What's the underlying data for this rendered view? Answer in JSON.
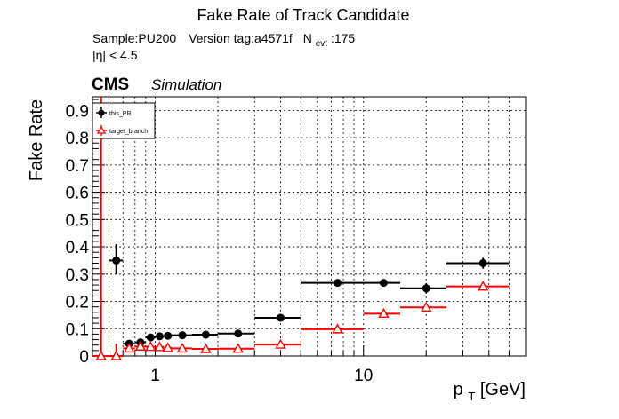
{
  "chart_data": {
    "type": "scatter",
    "title": "Fake Rate of Track Candidate",
    "subtitle": {
      "sample": "Sample:PU200",
      "version": "Version tag:a4571f",
      "nevt_base": "N",
      "nevt_sub": "evt",
      "nevt_value": ":175",
      "eta_cut": "|η| < 4.5"
    },
    "cms_label": "CMS",
    "simulation_label": "Simulation",
    "ylabel": "Fake Rate",
    "xlabel_base": "p",
    "xlabel_sub": "T",
    "xlabel_unit": " [GeV]",
    "x_scale": "log",
    "xlim": [
      0.5,
      60
    ],
    "ylim": [
      0,
      0.95
    ],
    "y_ticks": [
      "0",
      "0.1",
      "0.2",
      "0.3",
      "0.4",
      "0.5",
      "0.6",
      "0.7",
      "0.8",
      "0.9"
    ],
    "x_ticks": [
      "1",
      "10"
    ],
    "grid": true,
    "legend_position": "top-left",
    "series": [
      {
        "name": "this_PR",
        "color": "#000000",
        "marker": "filled-circle",
        "points": [
          {
            "x": 0.65,
            "xlo": 0.6,
            "xhi": 0.7,
            "y": 0.35,
            "ylo": 0.3,
            "yhi": 0.41
          },
          {
            "x": 0.75,
            "xlo": 0.7,
            "xhi": 0.8,
            "y": 0.045,
            "ylo": 0.04,
            "yhi": 0.05
          },
          {
            "x": 0.85,
            "xlo": 0.8,
            "xhi": 0.9,
            "y": 0.05,
            "ylo": 0.045,
            "yhi": 0.055
          },
          {
            "x": 0.95,
            "xlo": 0.9,
            "xhi": 1.0,
            "y": 0.068,
            "ylo": 0.063,
            "yhi": 0.073
          },
          {
            "x": 1.05,
            "xlo": 1.0,
            "xhi": 1.1,
            "y": 0.072,
            "ylo": 0.067,
            "yhi": 0.077
          },
          {
            "x": 1.15,
            "xlo": 1.1,
            "xhi": 1.2,
            "y": 0.074,
            "ylo": 0.069,
            "yhi": 0.079
          },
          {
            "x": 1.35,
            "xlo": 1.2,
            "xhi": 1.5,
            "y": 0.076,
            "ylo": 0.071,
            "yhi": 0.081
          },
          {
            "x": 1.75,
            "xlo": 1.5,
            "xhi": 2.0,
            "y": 0.078,
            "ylo": 0.073,
            "yhi": 0.083
          },
          {
            "x": 2.5,
            "xlo": 2.0,
            "xhi": 3.0,
            "y": 0.082,
            "ylo": 0.077,
            "yhi": 0.087
          },
          {
            "x": 4.0,
            "xlo": 3.0,
            "xhi": 5.0,
            "y": 0.14,
            "ylo": 0.133,
            "yhi": 0.147
          },
          {
            "x": 7.5,
            "xlo": 5.0,
            "xhi": 10.0,
            "y": 0.268,
            "ylo": 0.262,
            "yhi": 0.274
          },
          {
            "x": 12.5,
            "xlo": 10.0,
            "xhi": 15.0,
            "y": 0.268,
            "ylo": 0.256,
            "yhi": 0.28
          },
          {
            "x": 20.0,
            "xlo": 15.0,
            "xhi": 25.0,
            "y": 0.248,
            "ylo": 0.23,
            "yhi": 0.266
          },
          {
            "x": 37.5,
            "xlo": 25.0,
            "xhi": 50.0,
            "y": 0.34,
            "ylo": 0.32,
            "yhi": 0.36
          }
        ]
      },
      {
        "name": "target_branch",
        "color": "#ff0000",
        "marker": "open-triangle",
        "points": [
          {
            "x": 0.55,
            "xlo": 0.5,
            "xhi": 0.6,
            "y": 0.0,
            "ylo": 0.0,
            "yhi": 0.95
          },
          {
            "x": 0.65,
            "xlo": 0.6,
            "xhi": 0.7,
            "y": 0.0,
            "ylo": 0.0,
            "yhi": 0.045
          },
          {
            "x": 0.75,
            "xlo": 0.7,
            "xhi": 0.8,
            "y": 0.028,
            "ylo": 0.023,
            "yhi": 0.033
          },
          {
            "x": 0.85,
            "xlo": 0.8,
            "xhi": 0.9,
            "y": 0.035,
            "ylo": 0.03,
            "yhi": 0.04
          },
          {
            "x": 0.95,
            "xlo": 0.9,
            "xhi": 1.0,
            "y": 0.034,
            "ylo": 0.029,
            "yhi": 0.039
          },
          {
            "x": 1.05,
            "xlo": 1.0,
            "xhi": 1.1,
            "y": 0.033,
            "ylo": 0.028,
            "yhi": 0.038
          },
          {
            "x": 1.15,
            "xlo": 1.1,
            "xhi": 1.2,
            "y": 0.03,
            "ylo": 0.025,
            "yhi": 0.035
          },
          {
            "x": 1.35,
            "xlo": 1.2,
            "xhi": 1.5,
            "y": 0.028,
            "ylo": 0.023,
            "yhi": 0.033
          },
          {
            "x": 1.75,
            "xlo": 1.5,
            "xhi": 2.0,
            "y": 0.026,
            "ylo": 0.021,
            "yhi": 0.031
          },
          {
            "x": 2.5,
            "xlo": 2.0,
            "xhi": 3.0,
            "y": 0.027,
            "ylo": 0.022,
            "yhi": 0.032
          },
          {
            "x": 4.0,
            "xlo": 3.0,
            "xhi": 5.0,
            "y": 0.042,
            "ylo": 0.037,
            "yhi": 0.047
          },
          {
            "x": 7.5,
            "xlo": 5.0,
            "xhi": 10.0,
            "y": 0.098,
            "ylo": 0.092,
            "yhi": 0.104
          },
          {
            "x": 12.5,
            "xlo": 10.0,
            "xhi": 15.0,
            "y": 0.155,
            "ylo": 0.146,
            "yhi": 0.164
          },
          {
            "x": 20.0,
            "xlo": 15.0,
            "xhi": 25.0,
            "y": 0.178,
            "ylo": 0.164,
            "yhi": 0.192
          },
          {
            "x": 37.5,
            "xlo": 25.0,
            "xhi": 50.0,
            "y": 0.255,
            "ylo": 0.24,
            "yhi": 0.27
          }
        ]
      }
    ]
  }
}
